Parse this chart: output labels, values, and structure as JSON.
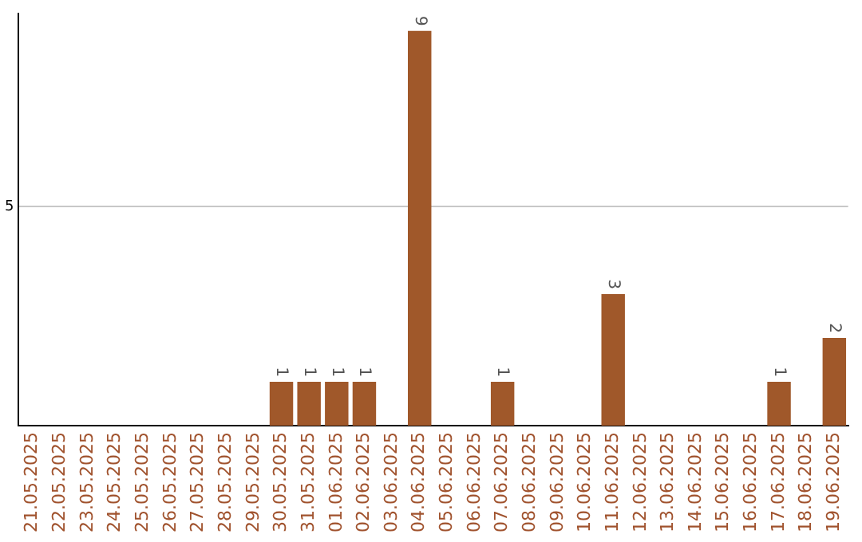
{
  "chart_data": {
    "type": "bar",
    "categories": [
      "21.05.2025",
      "22.05.2025",
      "23.05.2025",
      "24.05.2025",
      "25.05.2025",
      "26.05.2025",
      "27.05.2025",
      "28.05.2025",
      "29.05.2025",
      "30.05.2025",
      "31.05.2025",
      "01.06.2025",
      "02.06.2025",
      "03.06.2025",
      "04.06.2025",
      "05.06.2025",
      "06.06.2025",
      "07.06.2025",
      "08.06.2025",
      "09.06.2025",
      "10.06.2025",
      "11.06.2025",
      "12.06.2025",
      "13.06.2025",
      "14.06.2025",
      "15.06.2025",
      "16.06.2025",
      "17.06.2025",
      "18.06.2025",
      "19.06.2025"
    ],
    "values": [
      0,
      0,
      0,
      0,
      0,
      0,
      0,
      0,
      0,
      1,
      1,
      1,
      1,
      0,
      9,
      0,
      0,
      1,
      0,
      0,
      0,
      3,
      0,
      0,
      0,
      0,
      0,
      1,
      0,
      2
    ],
    "value_labels": [
      null,
      null,
      null,
      null,
      null,
      null,
      null,
      null,
      null,
      "1",
      "1",
      "1",
      "1",
      null,
      "9",
      null,
      null,
      "1",
      null,
      null,
      null,
      "3",
      null,
      null,
      null,
      null,
      null,
      "1",
      null,
      "2"
    ],
    "color": "#a0582a",
    "ylim": [
      0,
      9.4
    ],
    "yticks": [
      5
    ],
    "grid": "y",
    "legend": false
  }
}
